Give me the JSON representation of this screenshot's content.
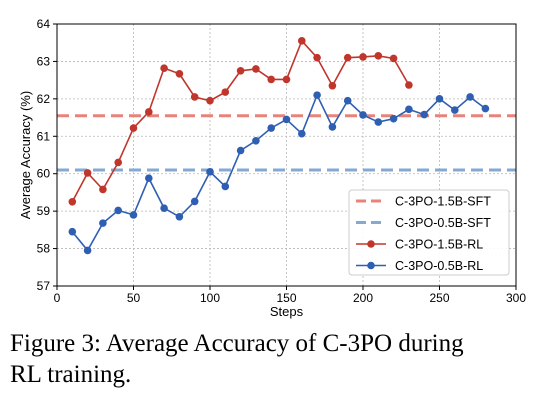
{
  "chart_data": {
    "type": "line",
    "xlabel": "Steps",
    "ylabel": "Average Accuracy (%)",
    "xlim": [
      0,
      300
    ],
    "ylim": [
      57,
      64
    ],
    "xticks": [
      0,
      50,
      100,
      150,
      200,
      250,
      300
    ],
    "yticks": [
      57,
      58,
      59,
      60,
      61,
      62,
      63,
      64
    ],
    "grid": true,
    "legend_position": "bottom-right",
    "reference_lines": [
      {
        "name": "C-3PO-1.5B-SFT",
        "y": 61.55,
        "color": "#e8837b",
        "style": "dashed"
      },
      {
        "name": "C-3PO-0.5B-SFT",
        "y": 60.1,
        "color": "#86a9d2",
        "style": "dashed"
      }
    ],
    "series": [
      {
        "name": "C-3PO-1.5B-RL",
        "color": "#c0362c",
        "x": [
          10,
          20,
          30,
          40,
          50,
          60,
          70,
          80,
          90,
          100,
          110,
          120,
          130,
          140,
          150,
          160,
          170,
          180,
          190,
          200,
          210,
          220,
          230
        ],
        "values": [
          59.25,
          60.02,
          59.58,
          60.3,
          61.22,
          61.65,
          62.82,
          62.67,
          62.05,
          61.95,
          62.18,
          62.75,
          62.8,
          62.52,
          62.52,
          63.55,
          63.1,
          62.35,
          63.1,
          63.12,
          63.15,
          63.08,
          62.37
        ]
      },
      {
        "name": "C-3PO-0.5B-RL",
        "color": "#2f5fb3",
        "x": [
          10,
          20,
          30,
          40,
          50,
          60,
          70,
          80,
          90,
          100,
          110,
          120,
          130,
          140,
          150,
          160,
          170,
          180,
          190,
          200,
          210,
          220,
          230,
          240,
          250,
          260,
          270,
          280
        ],
        "values": [
          58.45,
          57.95,
          58.68,
          59.02,
          58.9,
          59.88,
          59.08,
          58.85,
          59.26,
          60.05,
          59.66,
          60.62,
          60.88,
          61.22,
          61.45,
          61.07,
          62.1,
          61.25,
          61.95,
          61.57,
          61.38,
          61.47,
          61.72,
          61.58,
          62.0,
          61.7,
          62.05,
          61.74
        ]
      }
    ]
  },
  "caption": {
    "line1": "Figure 3: Average Accuracy of C-3PO during",
    "line2": "RL training."
  }
}
